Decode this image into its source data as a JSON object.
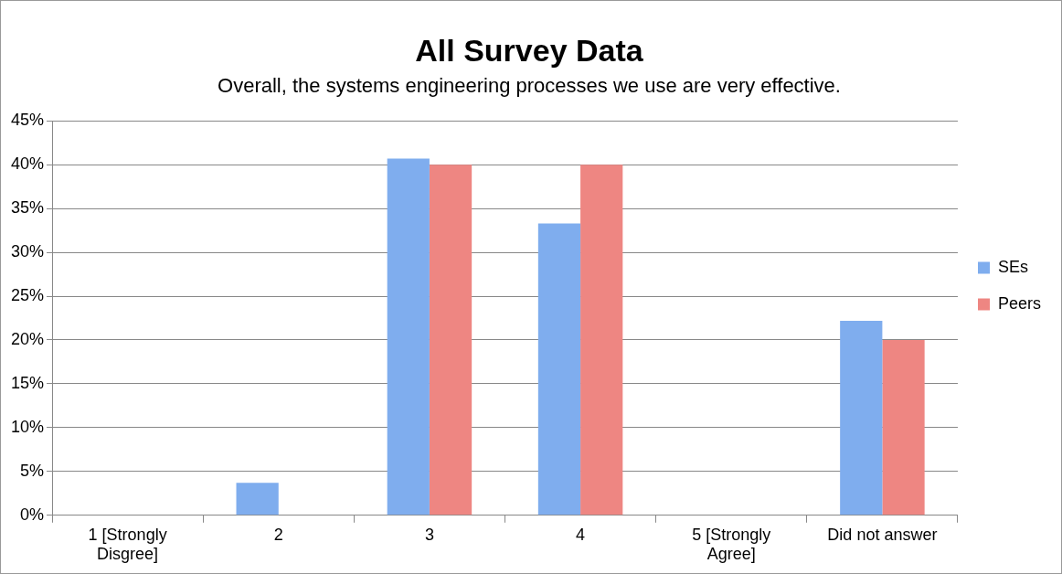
{
  "chart_data": {
    "type": "bar",
    "title": "All Survey Data",
    "subtitle": "Overall, the systems engineering processes we use are very effective.",
    "categories": [
      "1 [Strongly Disgree]",
      "2",
      "3",
      "4",
      "5 [Strongly Agree]",
      "Did not answer"
    ],
    "series": [
      {
        "name": "SEs",
        "color": "#7fadee",
        "values": [
          0,
          3.7,
          40.7,
          33.3,
          0,
          22.2
        ]
      },
      {
        "name": "Peers",
        "color": "#ee8682",
        "values": [
          0,
          0,
          40,
          40,
          0,
          20
        ]
      }
    ],
    "ylim": [
      0,
      45
    ],
    "yticks": [
      {
        "value": 0,
        "label": "0%"
      },
      {
        "value": 5,
        "label": "5%"
      },
      {
        "value": 10,
        "label": "10%"
      },
      {
        "value": 15,
        "label": "15%"
      },
      {
        "value": 20,
        "label": "20%"
      },
      {
        "value": 25,
        "label": "25%"
      },
      {
        "value": 30,
        "label": "30%"
      },
      {
        "value": 35,
        "label": "35%"
      },
      {
        "value": 40,
        "label": "40%"
      },
      {
        "value": 45,
        "label": "45%"
      }
    ],
    "grid": "y",
    "legend": "right"
  }
}
